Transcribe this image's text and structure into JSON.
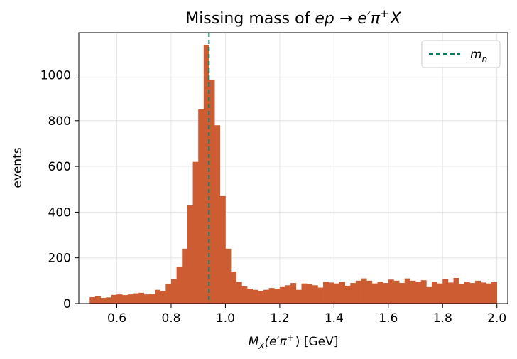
{
  "chart_data": {
    "type": "bar",
    "title_parts": [
      "Missing mass of ",
      "ep",
      " → ",
      "e′π",
      "+",
      "X"
    ],
    "xlabel_parts": [
      "M",
      "X",
      "(e′π",
      "+",
      ") [GeV]"
    ],
    "ylabel": "events",
    "xlim": [
      0.46,
      2.04
    ],
    "ylim": [
      0,
      1185
    ],
    "xticks": [
      "0.6",
      "0.8",
      "1.0",
      "1.2",
      "1.4",
      "1.6",
      "1.8",
      "2.0"
    ],
    "yticks": [
      "0",
      "200",
      "400",
      "600",
      "800",
      "1000"
    ],
    "grid": true,
    "legend_position": "top-right",
    "bin_start": 0.5,
    "bin_width": 0.02,
    "values": [
      28,
      33,
      25,
      27,
      38,
      40,
      37,
      40,
      45,
      47,
      40,
      42,
      60,
      55,
      85,
      108,
      160,
      240,
      430,
      620,
      850,
      1130,
      980,
      780,
      470,
      240,
      140,
      95,
      75,
      65,
      60,
      55,
      60,
      68,
      65,
      72,
      80,
      90,
      60,
      88,
      85,
      80,
      70,
      95,
      92,
      88,
      95,
      78,
      90,
      100,
      110,
      100,
      88,
      95,
      90,
      105,
      100,
      90,
      110,
      100,
      95,
      102,
      72,
      95,
      88,
      108,
      92,
      112,
      85,
      95,
      90,
      100,
      92,
      88,
      94
    ],
    "bar_color": "#cd5c33",
    "vline": {
      "x": 0.9396,
      "legend_label": "m",
      "legend_sub": "n",
      "color": "#117864"
    }
  }
}
